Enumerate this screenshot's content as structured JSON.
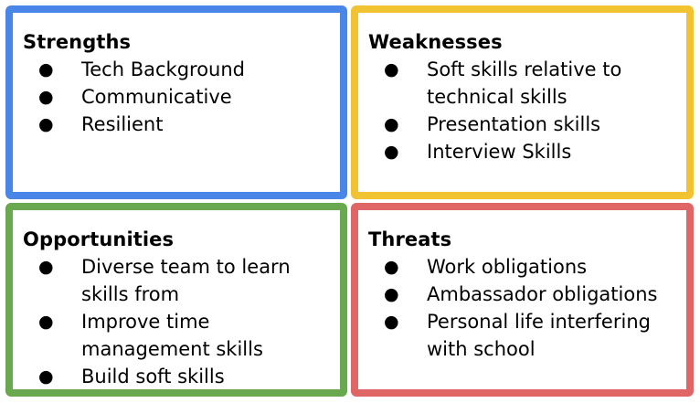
{
  "quadrants": [
    {
      "title": "Strengths",
      "color": "#4a86e8",
      "items": [
        "Tech Background",
        "Communicative",
        "Resilient"
      ]
    },
    {
      "title": "Weaknesses",
      "color": "#f1c232",
      "items": [
        "Soft skills relative to technical skills",
        "Presentation skills",
        "Interview Skills"
      ]
    },
    {
      "title": "Opportunities",
      "color": "#6aa84f",
      "items": [
        "Diverse team to learn skills from",
        "Improve time management skills",
        "Build soft skills"
      ]
    },
    {
      "title": "Threats",
      "color": "#e06666",
      "items": [
        "Work obligations",
        "Ambassador obligations",
        "Personal life interfering with school"
      ]
    }
  ],
  "bullet_glyph": "●"
}
